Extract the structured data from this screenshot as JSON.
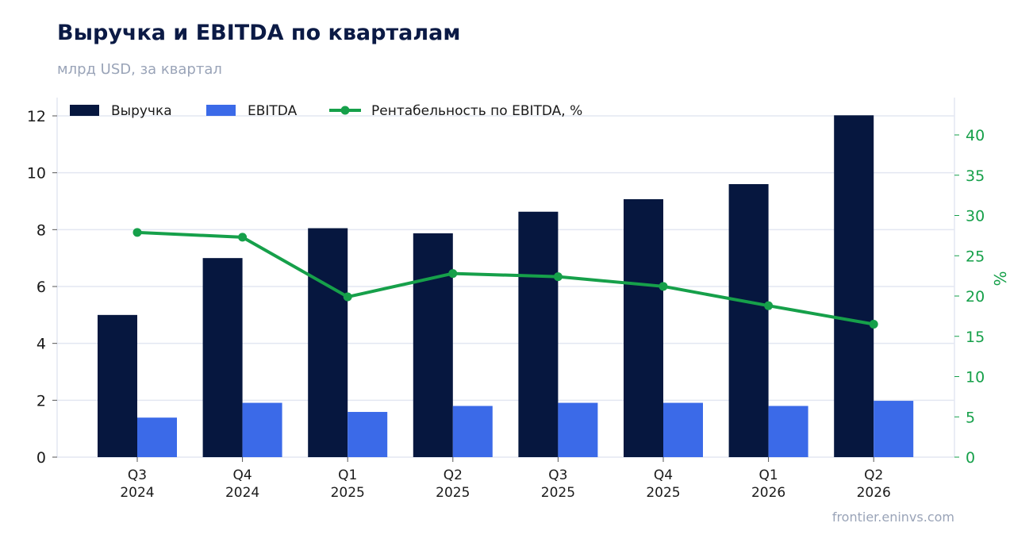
{
  "header": {
    "title": "Выручка и EBITDA по кварталам",
    "subtitle": "млрд USD, за квартал"
  },
  "footer": {
    "source": "frontier.eninvs.com"
  },
  "colors": {
    "revenue": "#06173f",
    "ebitda": "#3b6ae8",
    "margin": "#16a04a",
    "grid": "#e3e7f2",
    "axis_text": "#1a1a1a",
    "right_axis_text": "#16a04a"
  },
  "chart_data": {
    "type": "bar",
    "categories": [
      [
        "Q3",
        "2024"
      ],
      [
        "Q4",
        "2024"
      ],
      [
        "Q1",
        "2025"
      ],
      [
        "Q2",
        "2025"
      ],
      [
        "Q3",
        "2025"
      ],
      [
        "Q4",
        "2025"
      ],
      [
        "Q1",
        "2026"
      ],
      [
        "Q2",
        "2026"
      ]
    ],
    "series": [
      {
        "name": "Выручка",
        "type": "bar",
        "axis": "left",
        "values": [
          5.0,
          7.0,
          8.05,
          7.87,
          8.63,
          9.07,
          9.6,
          12.02
        ]
      },
      {
        "name": "EBITDA",
        "type": "bar",
        "axis": "left",
        "values": [
          1.39,
          1.91,
          1.59,
          1.8,
          1.91,
          1.91,
          1.8,
          1.98
        ]
      },
      {
        "name": "Рентабельность по EBITDA, %",
        "type": "line",
        "axis": "right",
        "values": [
          27.9,
          27.3,
          19.9,
          22.8,
          22.4,
          21.2,
          18.8,
          16.5
        ]
      }
    ],
    "ylim": [
      0,
      12.6
    ],
    "yticks": [
      0,
      2,
      4,
      6,
      8,
      10,
      12
    ],
    "y2label": "%",
    "y2lim": [
      0,
      44.1
    ],
    "y2ticks": [
      0,
      5,
      10,
      15,
      20,
      25,
      30,
      35,
      40
    ],
    "legend_position": "top-left",
    "grid": true
  }
}
